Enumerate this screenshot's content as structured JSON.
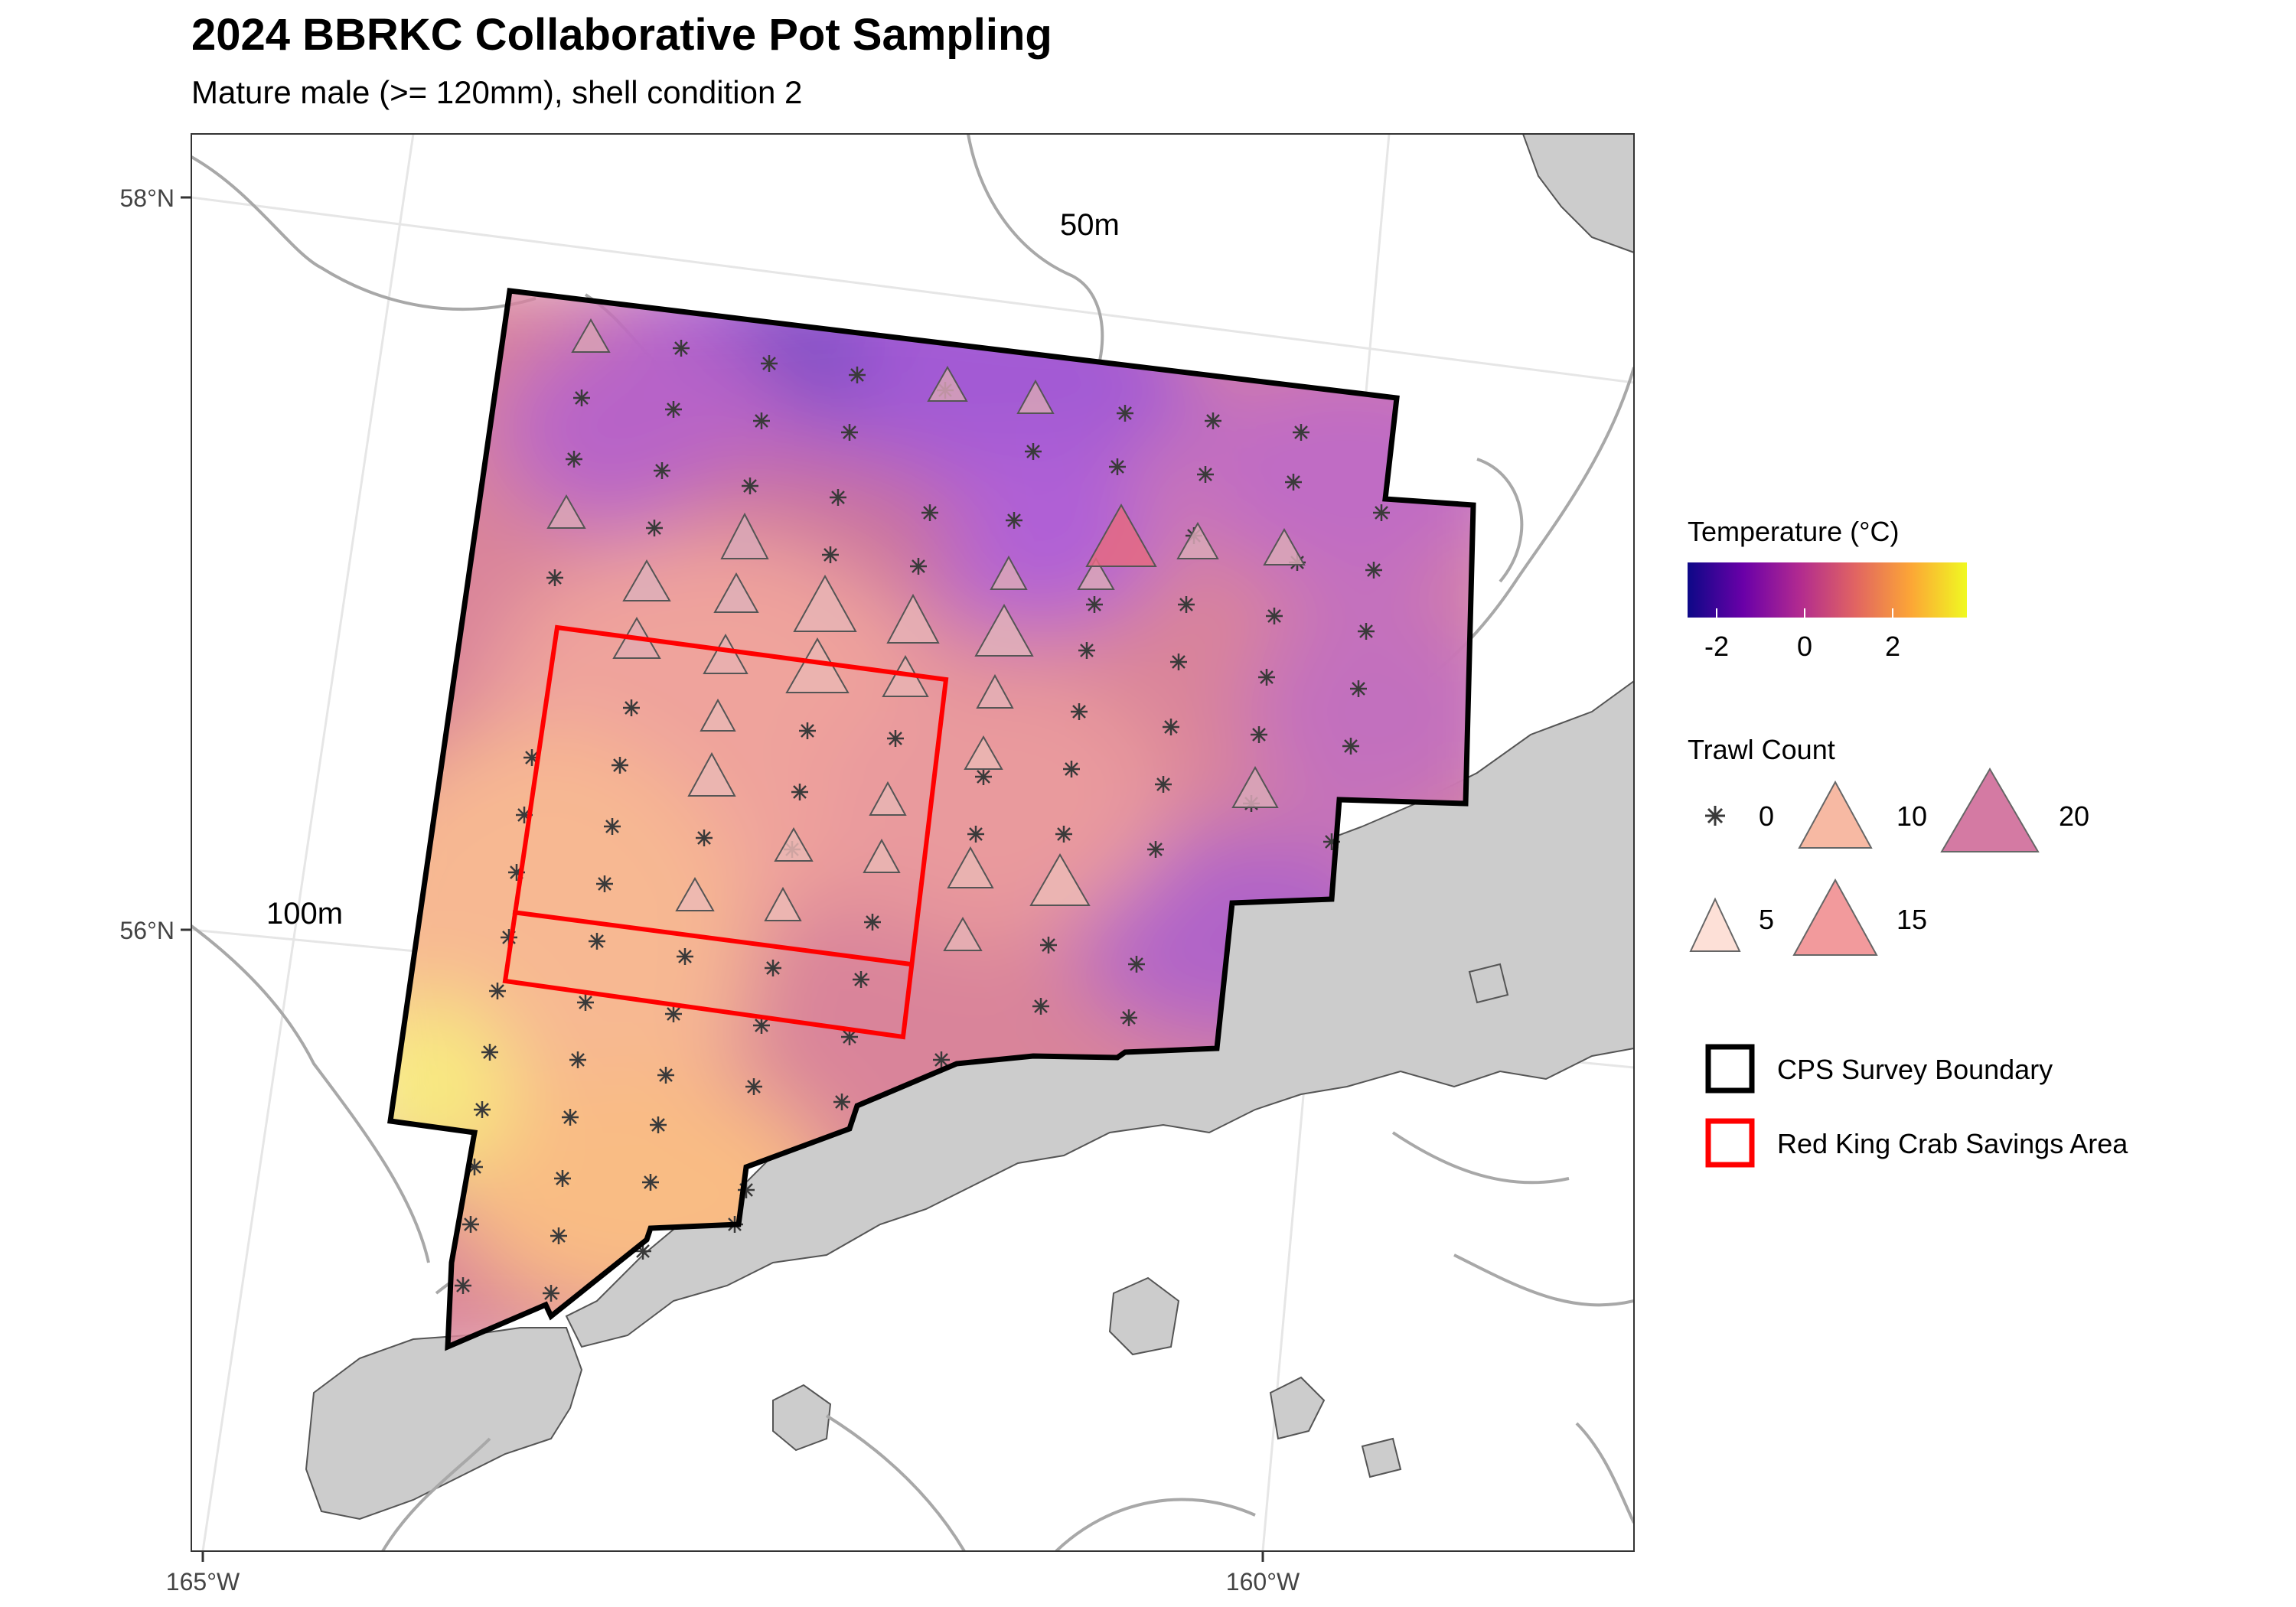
{
  "title": "2024 BBRKC Collaborative Pot Sampling",
  "subtitle": "Mature male (>= 120mm), shell condition 2",
  "axes": {
    "lat_ticks": [
      "58°N",
      "56°N"
    ],
    "lon_ticks": [
      "165°W",
      "160°W"
    ]
  },
  "contour_labels": [
    "50m",
    "100m"
  ],
  "legend": {
    "temperature": {
      "title": "Temperature (°C)",
      "ticks": [
        "-2",
        "0",
        "2"
      ],
      "colors": [
        "#0d0887",
        "#6a00a8",
        "#b12a90",
        "#e16462",
        "#fca636",
        "#f0f921"
      ]
    },
    "trawl_count": {
      "title": "Trawl Count",
      "entries": [
        {
          "label": "0",
          "value": 0,
          "symbol": "asterisk-icon"
        },
        {
          "label": "10",
          "value": 10,
          "color": "#f7b9a3"
        },
        {
          "label": "20",
          "value": 20,
          "color": "#d47aa3"
        },
        {
          "label": "5",
          "value": 5,
          "color": "#fde0d7"
        },
        {
          "label": "15",
          "value": 15,
          "color": "#f29a9c"
        }
      ]
    },
    "boundaries": [
      {
        "label": "CPS Survey Boundary",
        "color": "#000000"
      },
      {
        "label": "Red King Crab Savings Area",
        "color": "#ff0000"
      }
    ]
  }
}
